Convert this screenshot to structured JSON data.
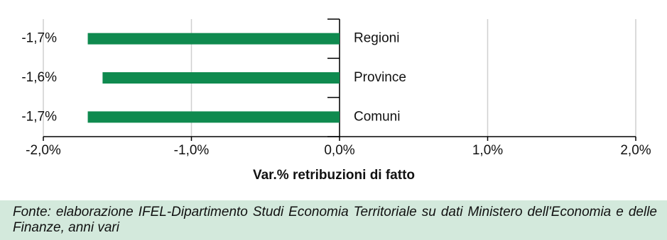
{
  "chart_data": {
    "type": "hbar",
    "xlabel": "Var.% retribuzioni di fatto",
    "categories": [
      "Regioni",
      "Province",
      "Comuni"
    ],
    "values": [
      -1.7,
      -1.6,
      -1.7
    ],
    "value_labels": [
      "-1,7%",
      "-1,6%",
      "-1,7%"
    ],
    "color": "#0f8a4f",
    "xlim": [
      -2,
      2
    ],
    "xticks": [
      {
        "value": -2,
        "label": "-2,0%"
      },
      {
        "value": -1,
        "label": "-1,0%"
      },
      {
        "value": 0,
        "label": "0,0%"
      },
      {
        "value": 1,
        "label": "1,0%"
      },
      {
        "value": 2,
        "label": "2,0%"
      }
    ],
    "grid": true,
    "note": "Fonte: elaborazione IFEL-Dipartimento Studi Economia Territoriale su dati Ministero dell'Economia e delle Finanze, anni vari"
  }
}
